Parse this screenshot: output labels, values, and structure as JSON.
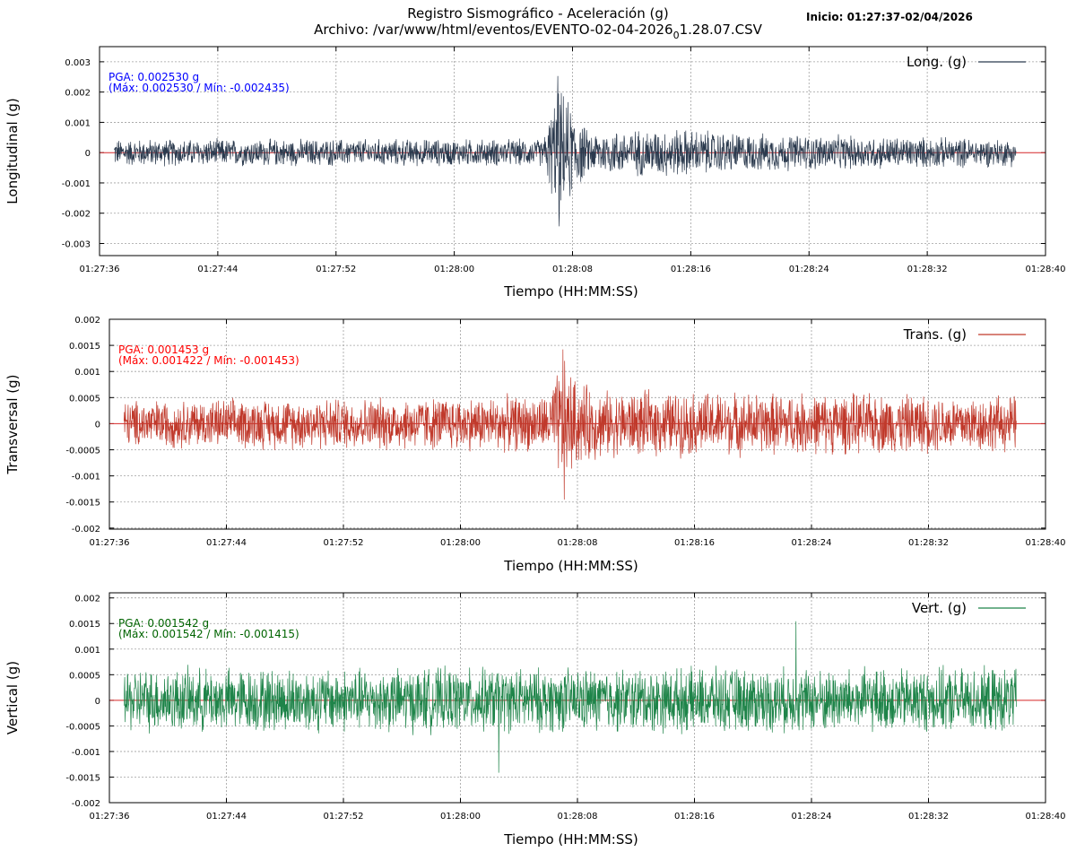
{
  "header": {
    "title_line1": "Registro Sismográfico - Aceleración (g)",
    "title_line2_prefix": "Archivo: /var/www/html/eventos/EVENTO-02-04-2026",
    "title_line2_sub": "0",
    "title_line2_suffix": "1.28.07.CSV",
    "start_label": "Inicio: 01:27:37-02/04/2026"
  },
  "chart_data": [
    {
      "type": "line",
      "ylabel": "Longitudinal (g)",
      "xlabel": "Tiempo (HH:MM:SS)",
      "legend": "Long. (g)",
      "legend_position": "top-right",
      "color": "#2b3a4e",
      "zero_line_color": "#d62728",
      "grid": true,
      "xlim": [
        "01:27:36",
        "01:28:40"
      ],
      "ylim": [
        -0.0034,
        0.0035
      ],
      "x_ticks": [
        "01:27:36",
        "01:27:44",
        "01:27:52",
        "01:28:00",
        "01:28:08",
        "01:28:16",
        "01:28:24",
        "01:28:32",
        "01:28:40"
      ],
      "y_ticks": [
        0.003,
        0.002,
        0.001,
        0,
        -0.001,
        -0.002,
        -0.003
      ],
      "y_tick_labels": [
        "0.003",
        "0.002",
        "0.001",
        "0",
        "-0.001",
        "-0.002",
        "-0.003"
      ],
      "annotation_line1": "PGA: 0.002530 g",
      "annotation_line2": "(Máx: 0.002530 / Mín: -0.002435)",
      "annotation_color": "#0000ff",
      "series": {
        "t_start": "01:27:37",
        "t_end": "01:28:38",
        "pga": 0.00253,
        "max": 0.00253,
        "min": -0.002435,
        "envelope": [
          {
            "t": "01:27:37",
            "amp": 0.0005
          },
          {
            "t": "01:28:06",
            "amp": 0.0005
          },
          {
            "t": "01:28:07",
            "amp": 0.0024
          },
          {
            "t": "01:28:08",
            "amp": 0.0017
          },
          {
            "t": "01:28:09",
            "amp": 0.0008
          },
          {
            "t": "01:28:15",
            "amp": 0.0009
          },
          {
            "t": "01:28:20",
            "amp": 0.0007
          },
          {
            "t": "01:28:38",
            "amp": 0.0005
          }
        ]
      }
    },
    {
      "type": "line",
      "ylabel": "Transversal (g)",
      "xlabel": "Tiempo (HH:MM:SS)",
      "legend": "Trans. (g)",
      "legend_position": "top-right",
      "color": "#c0392b",
      "zero_line_color": "#d62728",
      "grid": true,
      "xlim": [
        "01:27:36",
        "01:28:40"
      ],
      "ylim": [
        -0.00202,
        0.002
      ],
      "x_ticks": [
        "01:27:36",
        "01:27:44",
        "01:27:52",
        "01:28:00",
        "01:28:08",
        "01:28:16",
        "01:28:24",
        "01:28:32",
        "01:28:40"
      ],
      "y_ticks": [
        0.002,
        0.0015,
        0.001,
        0.0005,
        0,
        -0.0005,
        -0.001,
        -0.0015,
        -0.002
      ],
      "y_tick_labels": [
        "0.002",
        "0.0015",
        "0.001",
        "0.0005",
        "0",
        "-0.0005",
        "-0.001",
        "-0.0015",
        "-0.002"
      ],
      "annotation_line1": "PGA: 0.001453 g",
      "annotation_line2": "(Máx: 0.001422 / Mín: -0.001453)",
      "annotation_color": "#ff0000",
      "series": {
        "t_start": "01:27:37",
        "t_end": "01:28:38",
        "pga": 0.001453,
        "max": 0.001422,
        "min": -0.001453,
        "envelope": [
          {
            "t": "01:27:37",
            "amp": 0.0005
          },
          {
            "t": "01:28:06",
            "amp": 0.0006
          },
          {
            "t": "01:28:07",
            "amp": 0.0014
          },
          {
            "t": "01:28:08",
            "amp": 0.0009
          },
          {
            "t": "01:28:10",
            "amp": 0.0007
          },
          {
            "t": "01:28:38",
            "amp": 0.0006
          }
        ]
      }
    },
    {
      "type": "line",
      "ylabel": "Vertical (g)",
      "xlabel": "Tiempo (HH:MM:SS)",
      "legend": "Vert. (g)",
      "legend_position": "top-right",
      "color": "#1e8449",
      "zero_line_color": "#d62728",
      "grid": true,
      "xlim": [
        "01:27:36",
        "01:28:40"
      ],
      "ylim": [
        -0.002,
        0.0021
      ],
      "x_ticks": [
        "01:27:36",
        "01:27:44",
        "01:27:52",
        "01:28:00",
        "01:28:08",
        "01:28:16",
        "01:28:24",
        "01:28:32",
        "01:28:40"
      ],
      "y_ticks": [
        0.002,
        0.0015,
        0.001,
        0.0005,
        0,
        -0.0005,
        -0.001,
        -0.0015,
        -0.002
      ],
      "y_tick_labels": [
        "0.002",
        "0.0015",
        "0.001",
        "0.0005",
        "0",
        "-0.0005",
        "-0.001",
        "-0.0015",
        "-0.002"
      ],
      "annotation_line1": "PGA: 0.001542 g",
      "annotation_line2": "(Máx: 0.001542 / Mín: -0.001415)",
      "annotation_color": "#006400",
      "series": {
        "t_start": "01:27:37",
        "t_end": "01:28:38",
        "pga": 0.001542,
        "max": 0.001542,
        "min": -0.001415,
        "envelope": [
          {
            "t": "01:27:37",
            "amp": 0.0007
          },
          {
            "t": "01:28:38",
            "amp": 0.0007
          }
        ]
      }
    }
  ]
}
